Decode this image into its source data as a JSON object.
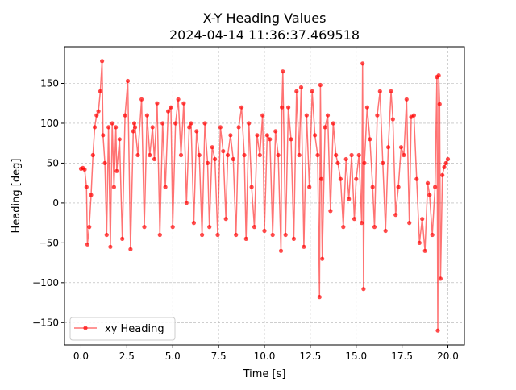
{
  "chart_data": {
    "type": "line",
    "title": "X-Y Heading Values",
    "subtitle": "2024-04-14 11:36:37.469518",
    "xlabel": "Time [s]",
    "ylabel": "Heading [deg]",
    "xlim": [
      -0.9,
      20.9
    ],
    "ylim": [
      -178,
      196
    ],
    "x_ticks": [
      0.0,
      2.5,
      5.0,
      7.5,
      10.0,
      12.5,
      15.0,
      17.5,
      20.0
    ],
    "x_tick_labels": [
      "0.0",
      "2.5",
      "5.0",
      "7.5",
      "10.0",
      "12.5",
      "15.0",
      "17.5",
      "20.0"
    ],
    "y_ticks": [
      -150,
      -100,
      -50,
      0,
      50,
      100,
      150
    ],
    "y_tick_labels": [
      "−150",
      "−100",
      "−50",
      "0",
      "50",
      "100",
      "150"
    ],
    "grid": true,
    "legend_position": "lower-left",
    "colors": {
      "series": "#ff0000",
      "grid": "#b0b0b0"
    },
    "series": [
      {
        "name": "xy Heading",
        "marker": "circle",
        "x": [
          0.0,
          0.1,
          0.2,
          0.3,
          0.35,
          0.45,
          0.55,
          0.65,
          0.75,
          0.85,
          0.95,
          1.05,
          1.15,
          1.2,
          1.3,
          1.4,
          1.5,
          1.6,
          1.7,
          1.8,
          1.9,
          1.95,
          2.1,
          2.25,
          2.4,
          2.55,
          2.7,
          2.85,
          2.9,
          2.95,
          3.1,
          3.3,
          3.45,
          3.6,
          3.75,
          3.9,
          4.0,
          4.15,
          4.3,
          4.45,
          4.6,
          4.75,
          4.9,
          5.0,
          5.15,
          5.3,
          5.45,
          5.6,
          5.75,
          5.9,
          6.0,
          6.15,
          6.3,
          6.45,
          6.6,
          6.75,
          6.9,
          7.0,
          7.15,
          7.3,
          7.45,
          7.6,
          7.75,
          7.9,
          8.0,
          8.15,
          8.3,
          8.45,
          8.6,
          8.75,
          8.9,
          9.0,
          9.15,
          9.3,
          9.45,
          9.6,
          9.75,
          9.9,
          10.0,
          10.15,
          10.3,
          10.45,
          10.6,
          10.75,
          10.9,
          10.95,
          11.0,
          11.15,
          11.3,
          11.45,
          11.6,
          11.75,
          11.9,
          12.0,
          12.15,
          12.3,
          12.45,
          12.6,
          12.75,
          12.9,
          13.0,
          13.05,
          13.1,
          13.15,
          13.3,
          13.45,
          13.6,
          13.75,
          13.9,
          14.0,
          14.15,
          14.3,
          14.45,
          14.6,
          14.75,
          14.9,
          15.0,
          15.15,
          15.3,
          15.35,
          15.4,
          15.45,
          15.6,
          15.75,
          15.9,
          16.0,
          16.15,
          16.3,
          16.45,
          16.6,
          16.75,
          16.9,
          17.0,
          17.15,
          17.3,
          17.45,
          17.6,
          17.75,
          17.9,
          18.0,
          18.15,
          18.3,
          18.45,
          18.6,
          18.75,
          18.9,
          19.0,
          19.15,
          19.3,
          19.4,
          19.45,
          19.5,
          19.55,
          19.6,
          19.7,
          19.8,
          19.9,
          20.0
        ],
        "y": [
          43,
          44,
          42,
          20,
          -52,
          -30,
          10,
          60,
          95,
          110,
          115,
          140,
          178,
          85,
          50,
          -40,
          95,
          -55,
          100,
          20,
          95,
          40,
          80,
          -45,
          110,
          153,
          -58,
          90,
          100,
          95,
          60,
          130,
          -30,
          110,
          60,
          95,
          55,
          125,
          -40,
          100,
          20,
          115,
          120,
          -30,
          100,
          130,
          60,
          125,
          0,
          95,
          100,
          -25,
          90,
          60,
          -40,
          100,
          50,
          -30,
          70,
          55,
          -40,
          95,
          65,
          -20,
          60,
          85,
          55,
          -40,
          95,
          120,
          60,
          -45,
          100,
          20,
          -30,
          85,
          60,
          110,
          -35,
          85,
          80,
          -40,
          90,
          60,
          -60,
          120,
          165,
          -40,
          120,
          80,
          -45,
          140,
          60,
          145,
          -55,
          110,
          20,
          140,
          85,
          60,
          -118,
          148,
          30,
          -70,
          95,
          110,
          -10,
          100,
          60,
          50,
          30,
          -30,
          55,
          5,
          60,
          -20,
          30,
          60,
          -25,
          175,
          -108,
          50,
          120,
          80,
          20,
          -30,
          110,
          140,
          50,
          -35,
          70,
          140,
          105,
          -15,
          20,
          70,
          60,
          130,
          -25,
          108,
          110,
          30,
          -50,
          -20,
          -60,
          25,
          10,
          -40,
          20,
          158,
          -160,
          160,
          124,
          -95,
          35,
          45,
          50,
          55
        ]
      }
    ]
  }
}
